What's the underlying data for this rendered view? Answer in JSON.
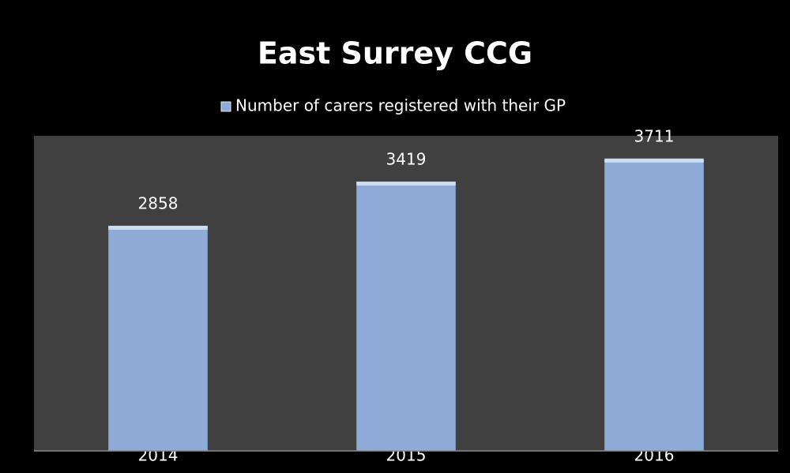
{
  "chart_data": {
    "type": "bar",
    "title": "East Surrey CCG",
    "categories": [
      "2014",
      "2015",
      "2016"
    ],
    "series": [
      {
        "name": "Number of carers registered with their GP",
        "color": "#8eaad6",
        "values": [
          2858,
          3419,
          3711
        ]
      }
    ],
    "ylim": [
      0,
      4000
    ],
    "legend": "top",
    "data_labels": true
  }
}
